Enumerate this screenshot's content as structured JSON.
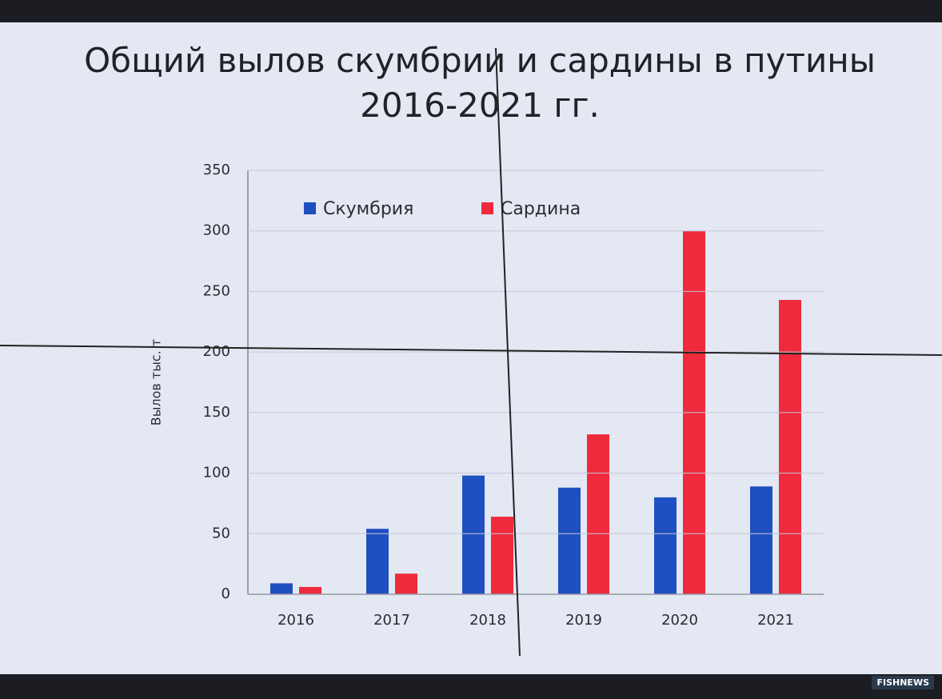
{
  "chart_data": {
    "type": "bar",
    "title": "Общий вылов скумбрии и сардины в путины 2016-2021 гг.",
    "y_label": "Вылов тыс. т",
    "categories": [
      "2016",
      "2017",
      "2018",
      "2019",
      "2020",
      "2021"
    ],
    "series": [
      {
        "name": "Скумбрия",
        "color": "#1f4fc0",
        "values": [
          9,
          54,
          98,
          88,
          80,
          89
        ]
      },
      {
        "name": "Сардина",
        "color": "#ee2a3c",
        "values": [
          6,
          17,
          64,
          132,
          300,
          243
        ]
      }
    ],
    "ylim": [
      0,
      350
    ],
    "yticks": [
      0,
      50,
      100,
      150,
      200,
      250,
      300,
      350
    ],
    "grid": true,
    "legend": "top"
  },
  "watermark": "FISHNEWS"
}
